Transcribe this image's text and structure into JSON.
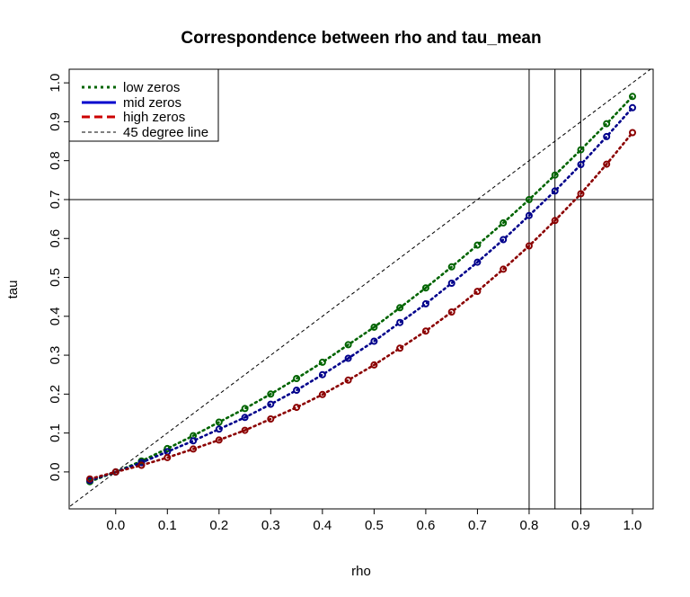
{
  "chart_data": {
    "type": "line",
    "title": "Correspondence between rho and tau_mean",
    "xlabel": "rho",
    "ylabel": "tau",
    "xlim": [
      -0.09,
      1.04
    ],
    "ylim": [
      -0.095,
      1.035
    ],
    "xticks": [
      "0.0",
      "0.1",
      "0.2",
      "0.3",
      "0.4",
      "0.5",
      "0.6",
      "0.7",
      "0.8",
      "0.9",
      "1.0"
    ],
    "yticks": [
      "0.0",
      "0.1",
      "0.2",
      "0.3",
      "0.4",
      "0.5",
      "0.6",
      "0.7",
      "0.8",
      "0.9",
      "1.0"
    ],
    "x": [
      -0.05,
      0.0,
      0.05,
      0.1,
      0.15,
      0.2,
      0.25,
      0.3,
      0.35,
      0.4,
      0.45,
      0.5,
      0.55,
      0.6,
      0.65,
      0.7,
      0.75,
      0.8,
      0.85,
      0.9,
      0.95,
      1.0
    ],
    "series": [
      {
        "name": "low zeros",
        "color": "#006400",
        "values": [
          -0.025,
          0.0,
          0.028,
          0.06,
          0.093,
          0.128,
          0.163,
          0.2,
          0.24,
          0.282,
          0.327,
          0.372,
          0.422,
          0.473,
          0.527,
          0.583,
          0.64,
          0.7,
          0.763,
          0.828,
          0.895,
          0.965
        ]
      },
      {
        "name": "mid zeros",
        "color": "#00008B",
        "values": [
          -0.022,
          0.0,
          0.024,
          0.052,
          0.08,
          0.11,
          0.14,
          0.174,
          0.21,
          0.25,
          0.292,
          0.336,
          0.384,
          0.432,
          0.485,
          0.539,
          0.597,
          0.659,
          0.722,
          0.79,
          0.862,
          0.936
        ]
      },
      {
        "name": "high zeros",
        "color": "#8B0000",
        "values": [
          -0.018,
          0.0,
          0.017,
          0.037,
          0.059,
          0.082,
          0.107,
          0.136,
          0.166,
          0.199,
          0.236,
          0.275,
          0.318,
          0.362,
          0.411,
          0.464,
          0.521,
          0.581,
          0.646,
          0.715,
          0.791,
          0.872
        ]
      }
    ],
    "reference_lines": {
      "diagonal_label": "45 degree line",
      "horizontal_y": [
        0.7
      ],
      "vertical_x": [
        0.8,
        0.85,
        0.9
      ]
    },
    "legend": {
      "position": "top-left",
      "entries": [
        {
          "label": "low zeros",
          "color": "#006400",
          "style": "dotted"
        },
        {
          "label": "mid zeros",
          "color": "#0000CD",
          "style": "solid"
        },
        {
          "label": "high zeros",
          "color": "#CC0000",
          "style": "dashed"
        },
        {
          "label": "45 degree line",
          "color": "#000000",
          "style": "dashed-thin"
        }
      ]
    }
  }
}
